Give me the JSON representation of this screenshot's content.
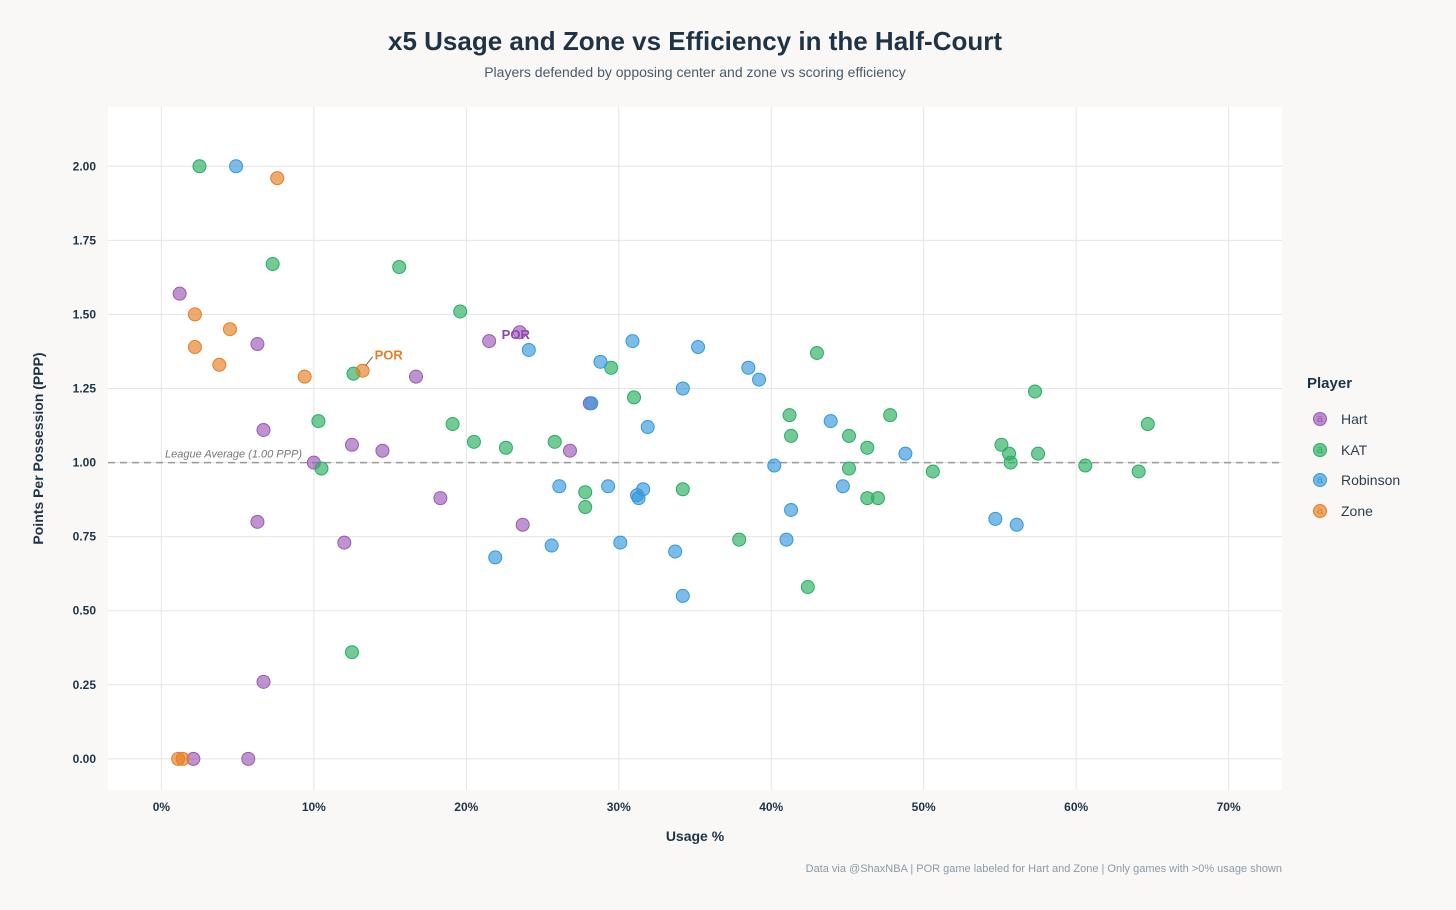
{
  "chart_data": {
    "type": "scatter",
    "title": "x5 Usage and Zone vs Efficiency in the Half-Court",
    "subtitle": "Players defended by opposing center and zone vs scoring efficiency",
    "xlabel": "Usage %",
    "ylabel": "Points Per Possession (PPP)",
    "xlim": [
      -3.5,
      73.5
    ],
    "ylim": [
      -0.105,
      2.2
    ],
    "xticks": [
      0,
      10,
      20,
      30,
      40,
      50,
      60,
      70
    ],
    "xtick_labels": [
      "0%",
      "10%",
      "20%",
      "30%",
      "40%",
      "50%",
      "60%",
      "70%"
    ],
    "yticks": [
      0,
      0.25,
      0.5,
      0.75,
      1,
      1.25,
      1.5,
      1.75,
      2
    ],
    "ytick_labels": [
      "0.00",
      "0.25",
      "0.50",
      "0.75",
      "1.00",
      "1.25",
      "1.50",
      "1.75",
      "2.00"
    ],
    "grid": true,
    "legend_title": "Player",
    "legend_position": "right",
    "reference_line": {
      "y": 1.0,
      "label": "League Average (1.00 PPP)"
    },
    "annotations": [
      {
        "series": "Hart",
        "x": 23.5,
        "y": 1.44,
        "text": "POR"
      },
      {
        "series": "Zone",
        "x": 13.2,
        "y": 1.31,
        "text": "POR"
      }
    ],
    "series": [
      {
        "name": "Hart",
        "color": "#9b59b6",
        "points": [
          [
            1.2,
            1.57
          ],
          [
            6.3,
            1.4
          ],
          [
            6.7,
            1.11
          ],
          [
            6.3,
            0.8
          ],
          [
            6.7,
            0.26
          ],
          [
            2.1,
            0
          ],
          [
            5.7,
            0
          ],
          [
            10.0,
            1.0
          ],
          [
            12.5,
            1.06
          ],
          [
            12.0,
            0.73
          ],
          [
            14.5,
            1.04
          ],
          [
            16.7,
            1.29
          ],
          [
            18.3,
            0.88
          ],
          [
            21.5,
            1.41
          ],
          [
            23.5,
            1.44
          ],
          [
            23.7,
            0.79
          ],
          [
            26.8,
            1.04
          ],
          [
            28.1,
            1.2
          ]
        ]
      },
      {
        "name": "KAT",
        "color": "#27ae60",
        "points": [
          [
            2.5,
            2.0
          ],
          [
            7.3,
            1.67
          ],
          [
            15.6,
            1.66
          ],
          [
            19.6,
            1.51
          ],
          [
            10.3,
            1.14
          ],
          [
            10.5,
            0.98
          ],
          [
            12.6,
            1.3
          ],
          [
            12.5,
            0.36
          ],
          [
            19.1,
            1.13
          ],
          [
            20.5,
            1.07
          ],
          [
            22.6,
            1.05
          ],
          [
            25.8,
            1.07
          ],
          [
            27.8,
            0.9
          ],
          [
            27.8,
            0.85
          ],
          [
            29.5,
            1.32
          ],
          [
            31.0,
            1.22
          ],
          [
            34.2,
            0.91
          ],
          [
            37.9,
            0.74
          ],
          [
            42.4,
            0.58
          ],
          [
            43.0,
            1.37
          ],
          [
            41.2,
            1.16
          ],
          [
            41.3,
            1.09
          ],
          [
            45.1,
            1.09
          ],
          [
            45.1,
            0.98
          ],
          [
            46.3,
            1.05
          ],
          [
            46.3,
            0.88
          ],
          [
            47.0,
            0.88
          ],
          [
            47.8,
            1.16
          ],
          [
            50.6,
            0.97
          ],
          [
            55.1,
            1.06
          ],
          [
            55.6,
            1.03
          ],
          [
            55.7,
            1.0
          ],
          [
            57.3,
            1.24
          ],
          [
            57.5,
            1.03
          ],
          [
            60.6,
            0.99
          ],
          [
            64.1,
            0.97
          ],
          [
            64.7,
            1.13
          ]
        ]
      },
      {
        "name": "Robinson",
        "color": "#3498db",
        "points": [
          [
            4.9,
            2.0
          ],
          [
            24.1,
            1.38
          ],
          [
            28.8,
            1.34
          ],
          [
            30.9,
            1.41
          ],
          [
            28.2,
            1.2
          ],
          [
            26.1,
            0.92
          ],
          [
            29.3,
            0.92
          ],
          [
            21.9,
            0.68
          ],
          [
            25.6,
            0.72
          ],
          [
            30.1,
            0.73
          ],
          [
            31.2,
            0.89
          ],
          [
            31.3,
            0.88
          ],
          [
            31.6,
            0.91
          ],
          [
            31.9,
            1.12
          ],
          [
            33.7,
            0.7
          ],
          [
            34.2,
            0.55
          ],
          [
            34.2,
            1.25
          ],
          [
            35.2,
            1.39
          ],
          [
            38.5,
            1.32
          ],
          [
            39.2,
            1.28
          ],
          [
            40.2,
            0.99
          ],
          [
            41.0,
            0.74
          ],
          [
            41.3,
            0.84
          ],
          [
            43.9,
            1.14
          ],
          [
            44.7,
            0.92
          ],
          [
            48.8,
            1.03
          ],
          [
            54.7,
            0.81
          ],
          [
            56.1,
            0.79
          ]
        ]
      },
      {
        "name": "Zone",
        "color": "#e67e22",
        "points": [
          [
            7.6,
            1.96
          ],
          [
            2.2,
            1.5
          ],
          [
            4.5,
            1.45
          ],
          [
            2.2,
            1.39
          ],
          [
            3.8,
            1.33
          ],
          [
            9.4,
            1.29
          ],
          [
            13.2,
            1.31
          ],
          [
            1.1,
            0
          ],
          [
            1.4,
            0
          ]
        ]
      }
    ],
    "footer": "Data via @ShaxNBA | POR game labeled for Hart and Zone | Only games with >0% usage shown"
  }
}
